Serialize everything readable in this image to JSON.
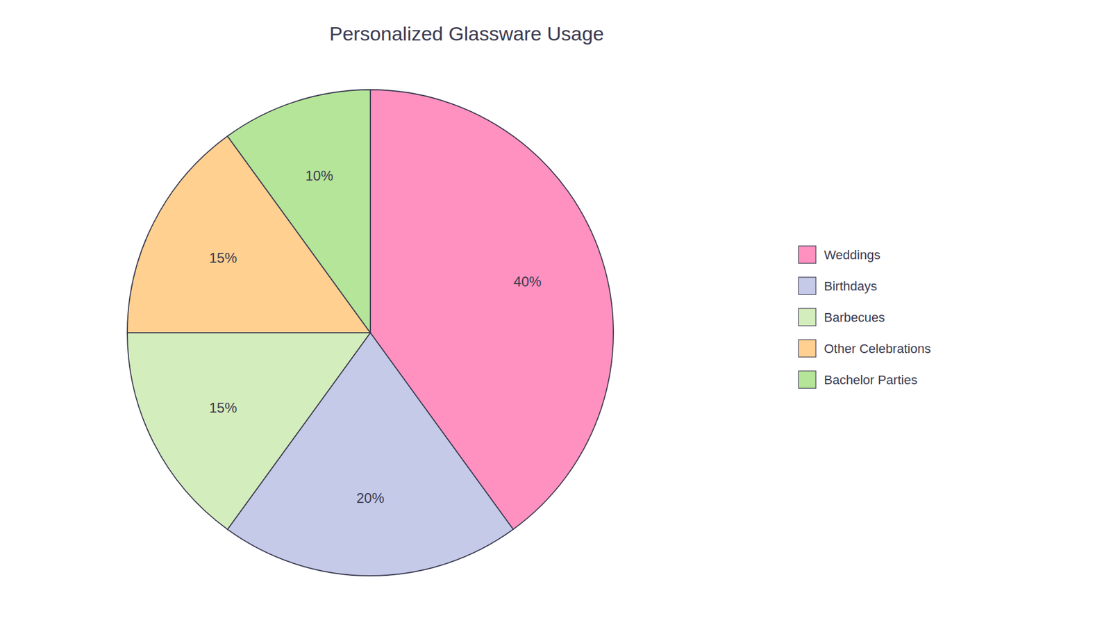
{
  "chart_data": {
    "type": "pie",
    "title": "Personalized Glassware Usage",
    "categories": [
      "Weddings",
      "Birthdays",
      "Barbecues",
      "Other Celebrations",
      "Bachelor Parties"
    ],
    "values": [
      40,
      20,
      15,
      15,
      10
    ],
    "value_labels": [
      "40%",
      "20%",
      "15%",
      "15%",
      "10%"
    ],
    "colors": [
      "#FF91C0",
      "#C5CAE9",
      "#D4EDBC",
      "#FFD090",
      "#B5E598"
    ],
    "data_labels": true,
    "legend": "right"
  }
}
